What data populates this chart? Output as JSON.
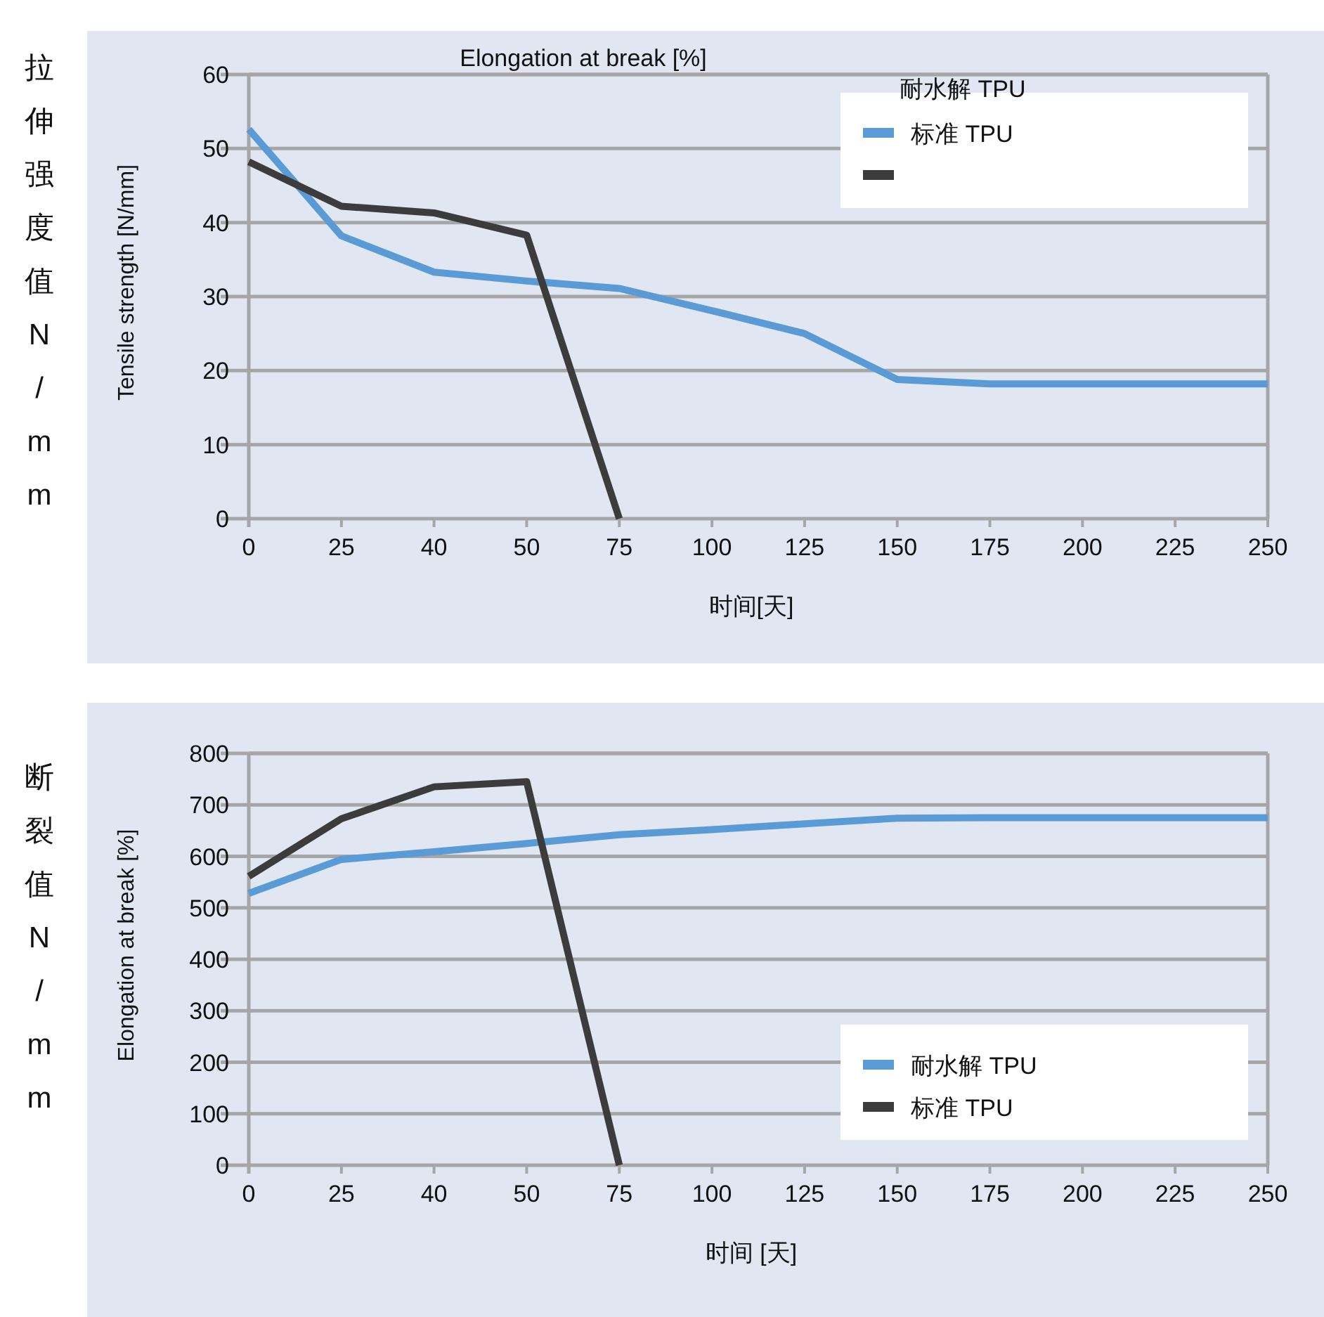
{
  "chart_data": [
    {
      "type": "line",
      "title": "Elongation at break [%]",
      "xlabel": "时间[天]",
      "ylabel": "Tensile strength [N/mm]",
      "annotations": [
        "拉伸强度值N/mm"
      ],
      "legend_title": "耐水解 TPU",
      "legend": "top right",
      "grid": "y",
      "categories": [
        "0",
        "25",
        "40",
        "50",
        "75",
        "100",
        "125",
        "150",
        "175",
        "200",
        "225",
        "250"
      ],
      "ylim": [
        0,
        60
      ],
      "yticks": [
        0,
        10,
        20,
        30,
        40,
        50,
        60
      ],
      "series": [
        {
          "name": "标准 TPU",
          "color": "#5b9bd5",
          "values": [
            52.6,
            38.2,
            33.3,
            32.1,
            31.1,
            28.1,
            25.0,
            18.8,
            18.2,
            18.2,
            18.2,
            18.2
          ]
        },
        {
          "color": "#3c3c3c",
          "values": [
            48.2,
            42.2,
            41.3,
            38.3,
            0,
            null,
            null,
            null,
            null,
            null,
            null,
            null
          ]
        }
      ]
    },
    {
      "type": "line",
      "xlabel": "时间 [天]",
      "ylabel": "Elongation at break [%]",
      "annotations": [
        "断裂值N/mm"
      ],
      "legend": "bottom right",
      "grid": "y",
      "categories": [
        "0",
        "25",
        "40",
        "50",
        "75",
        "100",
        "125",
        "150",
        "175",
        "200",
        "225",
        "250"
      ],
      "ylim": [
        0,
        800
      ],
      "yticks": [
        0,
        100,
        200,
        300,
        400,
        500,
        600,
        700,
        800
      ],
      "series": [
        {
          "name": "耐水解 TPU",
          "color": "#5b9bd5",
          "values": [
            528,
            594,
            609,
            625,
            642,
            652,
            663,
            674,
            675,
            675,
            675,
            675
          ]
        },
        {
          "name": "标准 TPU",
          "color": "#3c3c3c",
          "values": [
            561,
            673,
            735,
            745,
            0,
            null,
            null,
            null,
            null,
            null,
            null,
            null
          ]
        }
      ]
    }
  ]
}
